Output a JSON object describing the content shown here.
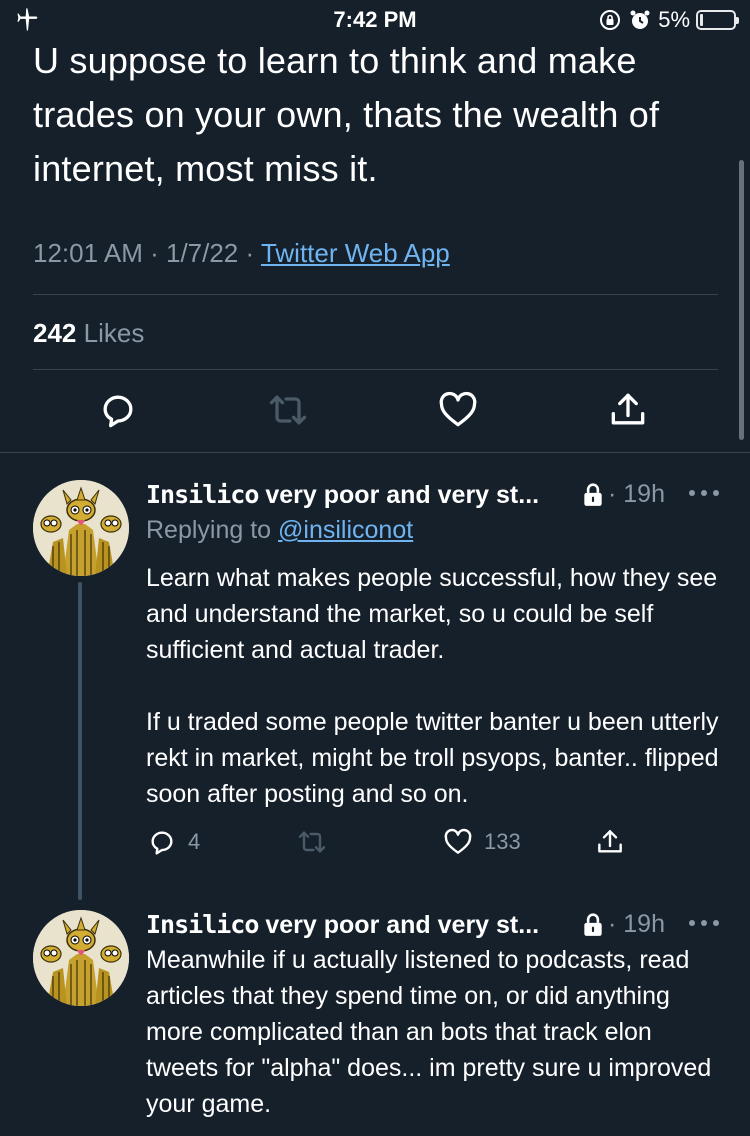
{
  "status_bar": {
    "time": "7:42 PM",
    "battery_percent": "5%"
  },
  "main_tweet": {
    "text": "U suppose to learn to think and make trades on your own, thats the wealth of internet, most miss it.",
    "time": "12:01 AM",
    "date": "1/7/22",
    "source": "Twitter Web App",
    "likes_count": "242",
    "likes_label": "Likes"
  },
  "replies": [
    {
      "name_styled": "Insilico",
      "name_rest": " very poor and very st...",
      "time": "19h",
      "replying_label": "Replying to ",
      "replying_handle": "@insiliconot",
      "paragraphs": [
        "Learn what makes people successful, how they see and understand the market, so u could be self sufficient and actual trader.",
        "If u traded some people twitter banter u been utterly rekt in market, might be troll psyops, banter.. flipped soon after posting and so on."
      ],
      "reply_count": "4",
      "like_count": "133"
    },
    {
      "name_styled": "Insilico",
      "name_rest": " very poor and very st...",
      "time": "19h",
      "paragraphs": [
        "Meanwhile if u actually listened to podcasts, read articles that they spend time on, or did anything more complicated than an bots that track elon tweets for \"alpha\" does... im pretty sure u improved your game."
      ]
    }
  ],
  "icons": {
    "status": [
      "airplane-icon",
      "orientation-lock-icon",
      "alarm-icon",
      "battery-icon"
    ],
    "actions": [
      "reply-icon",
      "retweet-icon",
      "like-icon",
      "share-icon"
    ],
    "reply_meta": [
      "lock-icon",
      "more-icon"
    ]
  },
  "colors": {
    "background": "#15202b",
    "text": "#ffffff",
    "secondary": "#8b98a5",
    "link": "#6fb4f0",
    "divider": "#38444d"
  }
}
